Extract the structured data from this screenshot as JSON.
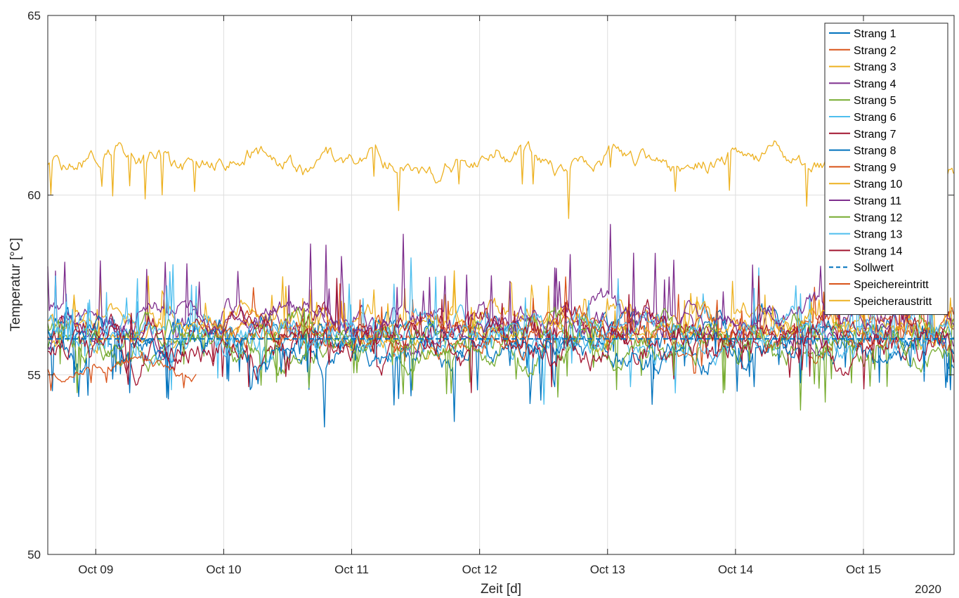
{
  "chart_data": {
    "type": "line",
    "xlabel": "Zeit [d]",
    "ylabel": "Temperatur [°C]",
    "year_label": "2020",
    "x_range": [
      "2020-10-08 15:00",
      "2020-10-15 17:00"
    ],
    "x_ticks": [
      {
        "date": "2020-10-09",
        "label": "Oct 09"
      },
      {
        "date": "2020-10-10",
        "label": "Oct 10"
      },
      {
        "date": "2020-10-11",
        "label": "Oct 11"
      },
      {
        "date": "2020-10-12",
        "label": "Oct 12"
      },
      {
        "date": "2020-10-13",
        "label": "Oct 13"
      },
      {
        "date": "2020-10-14",
        "label": "Oct 14"
      },
      {
        "date": "2020-10-15",
        "label": "Oct 15"
      }
    ],
    "ylim": [
      50,
      65
    ],
    "y_ticks": [
      50,
      55,
      60,
      65
    ],
    "grid": true,
    "legend_position": "top-right",
    "series": [
      {
        "name": "Strang 1",
        "color": "#0072BD",
        "style": "solid",
        "mean": 56.0,
        "amplitude": 0.7,
        "spike": 1.2,
        "spike_direction": "down",
        "x_start": "2020-10-08 15:00",
        "x_end": "2020-10-15 17:00"
      },
      {
        "name": "Strang 2",
        "color": "#D95319",
        "style": "solid",
        "mean": 56.1,
        "amplitude": 0.5,
        "spike": 0.6,
        "spike_direction": "both",
        "x_start": "2020-10-09 20:00",
        "x_end": "2020-10-15 17:00"
      },
      {
        "name": "Strang 3",
        "color": "#EDB120",
        "style": "solid",
        "mean": 56.4,
        "amplitude": 0.5,
        "spike": 0.9,
        "spike_direction": "up",
        "x_start": "2020-10-08 15:00",
        "x_end": "2020-10-15 17:00"
      },
      {
        "name": "Strang 4",
        "color": "#7E2F8E",
        "style": "solid",
        "mean": 56.4,
        "amplitude": 0.6,
        "spike": 1.4,
        "spike_direction": "up",
        "x_start": "2020-10-08 15:00",
        "x_end": "2020-10-15 17:00"
      },
      {
        "name": "Strang 5",
        "color": "#77AC30",
        "style": "solid",
        "mean": 55.9,
        "amplitude": 0.6,
        "spike": 1.3,
        "spike_direction": "down",
        "x_start": "2020-10-08 15:00",
        "x_end": "2020-10-15 17:00"
      },
      {
        "name": "Strang 6",
        "color": "#4DBEEE",
        "style": "solid",
        "mean": 56.1,
        "amplitude": 0.6,
        "spike": 1.1,
        "spike_direction": "both",
        "x_start": "2020-10-08 15:00",
        "x_end": "2020-10-15 17:00"
      },
      {
        "name": "Strang 7",
        "color": "#A2142F",
        "style": "solid",
        "mean": 56.0,
        "amplitude": 0.7,
        "spike": 0.9,
        "spike_direction": "both",
        "x_start": "2020-10-08 15:00",
        "x_end": "2020-10-15 17:00"
      },
      {
        "name": "Strang 8",
        "color": "#0072BD",
        "style": "solid",
        "mean": 55.9,
        "amplitude": 0.6,
        "spike": 1.0,
        "spike_direction": "down",
        "x_start": "2020-10-08 15:00",
        "x_end": "2020-10-15 17:00"
      },
      {
        "name": "Strang 9",
        "color": "#D95319",
        "style": "solid",
        "mean": 56.2,
        "amplitude": 0.5,
        "spike": 0.8,
        "spike_direction": "up",
        "x_start": "2020-10-09 20:00",
        "x_end": "2020-10-15 17:00"
      },
      {
        "name": "Strang 10",
        "color": "#EDB120",
        "style": "solid",
        "mean": 56.3,
        "amplitude": 0.5,
        "spike": 0.8,
        "spike_direction": "up",
        "x_start": "2020-10-08 15:00",
        "x_end": "2020-10-15 17:00"
      },
      {
        "name": "Strang 11",
        "color": "#7E2F8E",
        "style": "solid",
        "mean": 56.6,
        "amplitude": 0.5,
        "spike": 1.6,
        "spike_direction": "up",
        "x_start": "2020-10-08 15:00",
        "x_end": "2020-10-15 17:00"
      },
      {
        "name": "Strang 12",
        "color": "#77AC30",
        "style": "solid",
        "mean": 56.0,
        "amplitude": 0.6,
        "spike": 1.1,
        "spike_direction": "down",
        "x_start": "2020-10-08 15:00",
        "x_end": "2020-10-15 17:00"
      },
      {
        "name": "Strang 13",
        "color": "#4DBEEE",
        "style": "solid",
        "mean": 56.1,
        "amplitude": 0.6,
        "spike": 1.3,
        "spike_direction": "up",
        "x_start": "2020-10-08 15:00",
        "x_end": "2020-10-15 17:00"
      },
      {
        "name": "Strang 14",
        "color": "#A2142F",
        "style": "solid",
        "mean": 56.0,
        "amplitude": 0.7,
        "spike": 1.0,
        "spike_direction": "both",
        "x_start": "2020-10-08 15:00",
        "x_end": "2020-10-15 17:00"
      },
      {
        "name": "Sollwert",
        "color": "#0072BD",
        "style": "dashed",
        "mean": 56.0,
        "amplitude": 0,
        "spike": 0,
        "spike_direction": "none",
        "x_start": "2020-10-08 15:00",
        "x_end": "2020-10-15 17:00"
      },
      {
        "name": "Speichereintritt",
        "color": "#D95319",
        "style": "solid",
        "mean": 55.2,
        "amplitude": 0.3,
        "spike": 0.3,
        "spike_direction": "both",
        "x_start": "2020-10-08 15:00",
        "x_end": "2020-10-09 19:00"
      },
      {
        "name": "Speicheraustritt",
        "color": "#EDB120",
        "style": "solid",
        "mean": 61.0,
        "amplitude": 0.45,
        "spike": 0.9,
        "spike_direction": "down",
        "x_start": "2020-10-08 15:00",
        "x_end": "2020-10-15 17:00"
      }
    ]
  }
}
